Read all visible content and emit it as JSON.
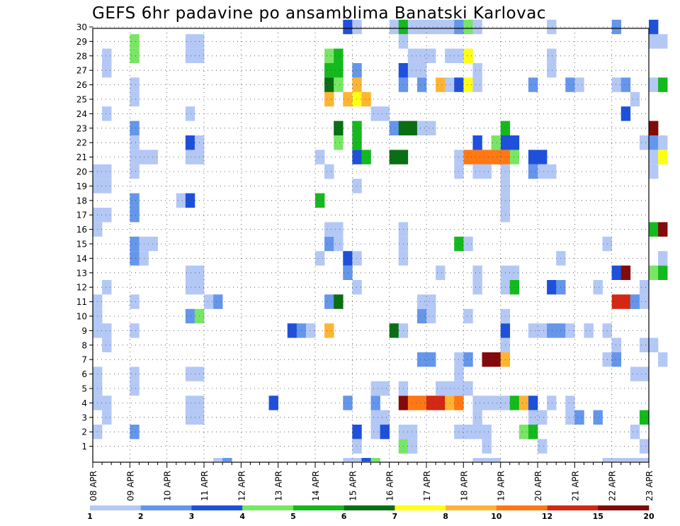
{
  "chart_data": {
    "type": "heatmap",
    "title": "GEFS 6hr padavine po ansamblima Banatski Karlovac",
    "xlabel": "",
    "ylabel": "",
    "y_members": [
      1,
      2,
      3,
      4,
      5,
      6,
      7,
      8,
      9,
      10,
      11,
      12,
      13,
      14,
      15,
      16,
      17,
      18,
      19,
      20,
      21,
      22,
      23,
      24,
      25,
      26,
      27,
      28,
      29,
      30
    ],
    "x_tick_labels": [
      "08 APR",
      "09 APR",
      "10 APR",
      "11 APR",
      "12 APR",
      "13 APR",
      "14 APR",
      "15 APR",
      "16 APR",
      "17 APR",
      "18 APR",
      "19 APR",
      "20 APR",
      "21 APR",
      "22 APR",
      "23 APR"
    ],
    "x_range_steps": [
      0,
      60
    ],
    "grid": true,
    "legend": {
      "position": "bottom",
      "labels": [
        "1",
        "2",
        "3",
        "4",
        "5",
        "6",
        "7",
        "8",
        "10",
        "12",
        "15",
        "20"
      ],
      "colors": [
        "#b4c8f5",
        "#6496eb",
        "#1e50dc",
        "#78e664",
        "#14b91e",
        "#0a6e14",
        "#ffff14",
        "#ffb432",
        "#ff7814",
        "#d22814",
        "#820a0a"
      ]
    },
    "cells": [
      [
        0,
        2,
        1
      ],
      [
        0,
        4,
        1
      ],
      [
        1,
        3,
        1
      ],
      [
        0,
        5,
        1
      ],
      [
        0,
        6,
        1
      ],
      [
        1,
        4,
        1
      ],
      [
        1,
        8,
        1
      ],
      [
        1,
        9,
        1
      ],
      [
        0,
        9,
        1
      ],
      [
        0,
        10,
        1
      ],
      [
        0,
        11,
        1
      ],
      [
        1,
        12,
        1
      ],
      [
        0,
        16,
        1
      ],
      [
        0,
        17,
        1
      ],
      [
        1,
        17,
        1
      ],
      [
        0,
        19,
        1
      ],
      [
        1,
        19,
        1
      ],
      [
        0,
        20,
        1
      ],
      [
        1,
        20,
        1
      ],
      [
        1,
        24,
        1
      ],
      [
        1,
        27,
        1
      ],
      [
        1,
        28,
        1
      ],
      [
        4,
        28,
        4
      ],
      [
        4,
        2,
        2
      ],
      [
        4,
        5,
        1
      ],
      [
        4,
        6,
        1
      ],
      [
        4,
        9,
        1
      ],
      [
        4,
        11,
        1
      ],
      [
        4,
        14,
        2
      ],
      [
        4,
        15,
        2
      ],
      [
        4,
        17,
        2
      ],
      [
        4,
        18,
        2
      ],
      [
        5,
        14,
        1
      ],
      [
        5,
        15,
        1
      ],
      [
        6,
        15,
        1
      ],
      [
        4,
        20,
        1
      ],
      [
        4,
        21,
        1
      ],
      [
        5,
        21,
        1
      ],
      [
        6,
        21,
        1
      ],
      [
        4,
        22,
        1
      ],
      [
        4,
        23,
        2
      ],
      [
        4,
        25,
        1
      ],
      [
        4,
        26,
        1
      ],
      [
        4,
        29,
        4
      ],
      [
        10,
        12,
        1
      ],
      [
        11,
        12,
        1
      ],
      [
        10,
        13,
        1
      ],
      [
        11,
        13,
        1
      ],
      [
        10,
        21,
        1
      ],
      [
        11,
        21,
        1
      ],
      [
        10,
        22,
        3
      ],
      [
        11,
        22,
        1
      ],
      [
        10,
        24,
        1
      ],
      [
        10,
        28,
        1
      ],
      [
        11,
        28,
        1
      ],
      [
        11,
        29,
        1
      ],
      [
        10,
        29,
        1
      ],
      [
        10,
        3,
        1
      ],
      [
        11,
        3,
        1
      ],
      [
        10,
        4,
        1
      ],
      [
        11,
        4,
        1
      ],
      [
        11,
        6,
        1
      ],
      [
        10,
        6,
        1
      ],
      [
        10,
        10,
        2
      ],
      [
        11,
        10,
        4
      ],
      [
        13,
        0,
        1
      ],
      [
        14,
        0,
        2
      ],
      [
        12,
        11,
        1
      ],
      [
        13,
        11,
        2
      ],
      [
        9,
        18,
        1
      ],
      [
        10,
        18,
        3
      ],
      [
        19,
        4,
        3
      ],
      [
        21,
        9,
        3
      ],
      [
        22,
        9,
        2
      ],
      [
        23,
        9,
        1
      ],
      [
        24,
        14,
        1
      ],
      [
        24,
        18,
        5
      ],
      [
        24,
        21,
        1
      ],
      [
        25,
        9,
        8
      ],
      [
        25,
        11,
        2
      ],
      [
        25,
        15,
        2
      ],
      [
        25,
        16,
        1
      ],
      [
        25,
        20,
        1
      ],
      [
        26,
        11,
        6
      ],
      [
        26,
        15,
        1
      ],
      [
        26,
        16,
        1
      ],
      [
        25,
        20,
        1
      ],
      [
        25,
        25,
        8
      ],
      [
        25,
        26,
        6
      ],
      [
        26,
        26,
        4
      ],
      [
        25,
        27,
        5
      ],
      [
        26,
        27,
        5
      ],
      [
        25,
        28,
        4
      ],
      [
        26,
        28,
        5
      ],
      [
        26,
        22,
        4
      ],
      [
        26,
        23,
        6
      ],
      [
        27,
        0,
        1
      ],
      [
        27,
        4,
        2
      ],
      [
        27,
        13,
        2
      ],
      [
        28,
        12,
        1
      ],
      [
        27,
        14,
        3
      ],
      [
        28,
        14,
        1
      ],
      [
        28,
        19,
        1
      ],
      [
        28,
        2,
        3
      ],
      [
        28,
        1,
        1
      ],
      [
        28,
        0,
        1
      ],
      [
        29,
        0,
        3
      ],
      [
        27,
        25,
        8
      ],
      [
        28,
        25,
        7
      ],
      [
        28,
        26,
        8
      ],
      [
        29,
        25,
        8
      ],
      [
        28,
        21,
        3
      ],
      [
        29,
        21,
        5
      ],
      [
        28,
        22,
        5
      ],
      [
        28,
        23,
        5
      ],
      [
        28,
        27,
        2
      ],
      [
        27,
        30,
        3
      ],
      [
        28,
        30,
        1
      ],
      [
        30,
        0,
        4
      ],
      [
        30,
        2,
        1
      ],
      [
        31,
        2,
        3
      ],
      [
        30,
        3,
        1
      ],
      [
        31,
        3,
        1
      ],
      [
        30,
        4,
        2
      ],
      [
        30,
        5,
        1
      ],
      [
        31,
        5,
        1
      ],
      [
        30,
        24,
        1
      ],
      [
        31,
        24,
        1
      ],
      [
        32,
        23,
        2
      ],
      [
        33,
        1,
        4
      ],
      [
        34,
        1,
        1
      ],
      [
        33,
        2,
        1
      ],
      [
        34,
        2,
        1
      ],
      [
        33,
        4,
        11
      ],
      [
        34,
        4,
        9
      ],
      [
        33,
        5,
        1
      ],
      [
        32,
        9,
        6
      ],
      [
        33,
        9,
        1
      ],
      [
        33,
        14,
        1
      ],
      [
        33,
        15,
        1
      ],
      [
        33,
        16,
        1
      ],
      [
        32,
        21,
        6
      ],
      [
        33,
        21,
        6
      ],
      [
        33,
        26,
        2
      ],
      [
        33,
        27,
        3
      ],
      [
        34,
        27,
        1
      ],
      [
        34,
        28,
        1
      ],
      [
        33,
        29,
        1
      ],
      [
        32,
        30,
        1
      ],
      [
        33,
        30,
        5
      ],
      [
        34,
        30,
        1
      ],
      [
        33,
        23,
        6
      ],
      [
        34,
        23,
        6
      ],
      [
        35,
        4,
        9
      ],
      [
        36,
        4,
        10
      ],
      [
        35,
        7,
        2
      ],
      [
        36,
        7,
        2
      ],
      [
        35,
        10,
        2
      ],
      [
        36,
        10,
        1
      ],
      [
        35,
        11,
        1
      ],
      [
        36,
        11,
        1
      ],
      [
        35,
        23,
        1
      ],
      [
        36,
        23,
        1
      ],
      [
        35,
        26,
        2
      ],
      [
        35,
        27,
        1
      ],
      [
        35,
        28,
        1
      ],
      [
        36,
        28,
        1
      ],
      [
        36,
        30,
        1
      ],
      [
        35,
        30,
        1
      ],
      [
        37,
        4,
        10
      ],
      [
        38,
        4,
        8
      ],
      [
        37,
        5,
        1
      ],
      [
        38,
        5,
        1
      ],
      [
        37,
        13,
        1
      ],
      [
        37,
        26,
        8
      ],
      [
        38,
        26,
        1
      ],
      [
        38,
        28,
        1
      ],
      [
        38,
        30,
        1
      ],
      [
        37,
        30,
        1
      ],
      [
        39,
        4,
        9
      ],
      [
        39,
        5,
        1
      ],
      [
        40,
        5,
        1
      ],
      [
        39,
        6,
        1
      ],
      [
        40,
        7,
        2
      ],
      [
        39,
        7,
        1
      ],
      [
        40,
        10,
        1
      ],
      [
        39,
        15,
        5
      ],
      [
        40,
        15,
        1
      ],
      [
        39,
        20,
        1
      ],
      [
        40,
        21,
        9
      ],
      [
        39,
        21,
        1
      ],
      [
        39,
        28,
        1
      ],
      [
        40,
        28,
        1
      ],
      [
        39,
        30,
        2
      ],
      [
        40,
        30,
        4
      ],
      [
        39,
        26,
        3
      ],
      [
        40,
        26,
        7
      ],
      [
        40,
        28,
        7
      ],
      [
        40,
        2,
        1
      ],
      [
        39,
        2,
        1
      ],
      [
        41,
        2,
        1
      ],
      [
        42,
        2,
        1
      ],
      [
        41,
        3,
        1
      ],
      [
        41,
        4,
        1
      ],
      [
        42,
        4,
        1
      ],
      [
        43,
        4,
        1
      ],
      [
        42,
        1,
        1
      ],
      [
        41,
        12,
        1
      ],
      [
        41,
        13,
        1
      ],
      [
        41,
        20,
        1
      ],
      [
        42,
        20,
        1
      ],
      [
        42,
        21,
        9
      ],
      [
        41,
        21,
        9
      ],
      [
        41,
        22,
        3
      ],
      [
        41,
        27,
        1
      ],
      [
        41,
        26,
        1
      ],
      [
        41,
        30,
        1
      ],
      [
        41,
        0,
        1
      ],
      [
        42,
        0,
        1
      ],
      [
        43,
        0,
        1
      ],
      [
        42,
        7,
        11
      ],
      [
        43,
        7,
        11
      ],
      [
        44,
        7,
        8
      ],
      [
        44,
        8,
        1
      ],
      [
        44,
        9,
        3
      ],
      [
        44,
        10,
        1
      ],
      [
        44,
        12,
        1
      ],
      [
        45,
        12,
        5
      ],
      [
        45,
        13,
        1
      ],
      [
        44,
        13,
        1
      ],
      [
        44,
        17,
        1
      ],
      [
        44,
        18,
        1
      ],
      [
        44,
        19,
        1
      ],
      [
        44,
        20,
        1
      ],
      [
        44,
        21,
        9
      ],
      [
        45,
        21,
        4
      ],
      [
        45,
        22,
        3
      ],
      [
        44,
        22,
        3
      ],
      [
        44,
        23,
        5
      ],
      [
        43,
        22,
        4
      ],
      [
        43,
        21,
        9
      ],
      [
        44,
        4,
        1
      ],
      [
        45,
        4,
        5
      ],
      [
        46,
        4,
        8
      ],
      [
        47,
        4,
        3
      ],
      [
        46,
        2,
        4
      ],
      [
        47,
        2,
        5
      ],
      [
        47,
        3,
        1
      ],
      [
        48,
        3,
        1
      ],
      [
        49,
        4,
        1
      ],
      [
        48,
        1,
        1
      ],
      [
        47,
        9,
        1
      ],
      [
        48,
        9,
        1
      ],
      [
        49,
        9,
        2
      ],
      [
        50,
        9,
        2
      ],
      [
        51,
        9,
        1
      ],
      [
        49,
        12,
        3
      ],
      [
        50,
        12,
        2
      ],
      [
        47,
        20,
        1
      ],
      [
        47,
        21,
        3
      ],
      [
        48,
        21,
        3
      ],
      [
        47,
        20,
        2
      ],
      [
        48,
        20,
        1
      ],
      [
        49,
        20,
        1
      ],
      [
        47,
        26,
        2
      ],
      [
        49,
        28,
        1
      ],
      [
        49,
        27,
        1
      ],
      [
        49,
        30,
        1
      ],
      [
        50,
        14,
        1
      ],
      [
        51,
        26,
        2
      ],
      [
        52,
        26,
        1
      ],
      [
        51,
        3,
        1
      ],
      [
        51,
        4,
        1
      ],
      [
        52,
        3,
        2
      ],
      [
        53,
        9,
        1
      ],
      [
        54,
        12,
        1
      ],
      [
        54,
        3,
        2
      ],
      [
        55,
        9,
        1
      ],
      [
        55,
        7,
        1
      ],
      [
        56,
        7,
        2
      ],
      [
        56,
        8,
        1
      ],
      [
        55,
        15,
        1
      ],
      [
        56,
        13,
        3
      ],
      [
        57,
        13,
        11
      ],
      [
        56,
        11,
        10
      ],
      [
        57,
        11,
        10
      ],
      [
        58,
        11,
        2
      ],
      [
        56,
        26,
        1
      ],
      [
        57,
        26,
        2
      ],
      [
        58,
        25,
        1
      ],
      [
        57,
        24,
        3
      ],
      [
        56,
        30,
        2
      ],
      [
        56,
        0,
        1
      ],
      [
        58,
        0,
        1
      ],
      [
        59,
        0,
        1
      ],
      [
        55,
        0,
        1
      ],
      [
        57,
        0,
        1
      ],
      [
        58,
        2,
        1
      ],
      [
        59,
        3,
        5
      ],
      [
        59,
        1,
        1
      ],
      [
        58,
        6,
        1
      ],
      [
        59,
        6,
        1
      ],
      [
        59,
        8,
        1
      ],
      [
        60,
        8,
        1
      ],
      [
        58,
        11,
        2
      ],
      [
        59,
        11,
        1
      ],
      [
        59,
        12,
        1
      ],
      [
        60,
        13,
        4
      ],
      [
        61,
        13,
        5
      ],
      [
        61,
        14,
        1
      ],
      [
        60,
        16,
        5
      ],
      [
        61,
        16,
        11
      ],
      [
        59,
        22,
        1
      ],
      [
        60,
        22,
        2
      ],
      [
        61,
        22,
        1
      ],
      [
        60,
        21,
        1
      ],
      [
        61,
        21,
        7
      ],
      [
        60,
        26,
        1
      ],
      [
        61,
        26,
        1
      ],
      [
        61,
        29,
        1
      ],
      [
        60,
        29,
        1
      ],
      [
        60,
        20,
        1
      ],
      [
        60,
        30,
        3
      ],
      [
        60,
        23,
        11
      ],
      [
        61,
        26,
        5
      ],
      [
        61,
        7,
        1
      ]
    ]
  }
}
